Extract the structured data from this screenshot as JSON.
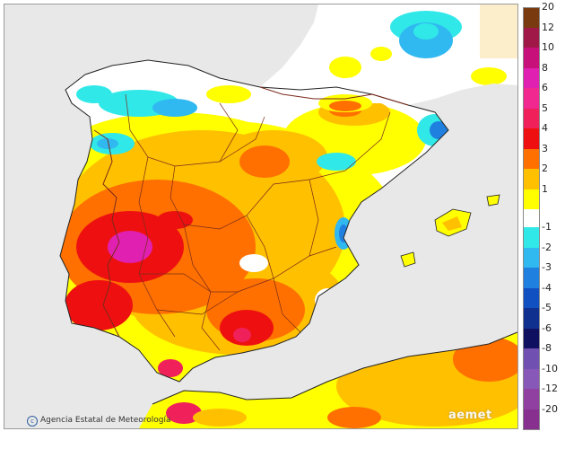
{
  "map": {
    "credit": "Agencia Estatal de Meteorología",
    "logo": "aemet"
  },
  "colors": {
    "sea": "#e8e8e8",
    "land_base": "#ffffff",
    "border": "#7a2a1a",
    "coast": "#222222"
  },
  "legend": {
    "positive": [
      {
        "label": "20",
        "color": "#7a3a10"
      },
      {
        "label": "12",
        "color": "#a01848"
      },
      {
        "label": "10",
        "color": "#c8107a"
      },
      {
        "label": "8",
        "color": "#e020b0"
      },
      {
        "label": "6",
        "color": "#f02890"
      },
      {
        "label": "5",
        "color": "#f0205a"
      },
      {
        "label": "4",
        "color": "#ee1010"
      },
      {
        "label": "3",
        "color": "#ff7000"
      },
      {
        "label": "2",
        "color": "#ffc000"
      },
      {
        "label": "1",
        "color": "#ffff00"
      }
    ],
    "neutral_color": "#ffffff",
    "negative": [
      {
        "label": "-1",
        "color": "#30e8e8"
      },
      {
        "label": "-2",
        "color": "#30b8f0"
      },
      {
        "label": "-3",
        "color": "#2080e0"
      },
      {
        "label": "-4",
        "color": "#1050c0"
      },
      {
        "label": "-5",
        "color": "#103090"
      },
      {
        "label": "-6",
        "color": "#101060"
      },
      {
        "label": "-8",
        "color": "#7050b0"
      },
      {
        "label": "-10",
        "color": "#8858b8"
      },
      {
        "label": "-12",
        "color": "#9040a0"
      },
      {
        "label": "-20",
        "color": "#883090"
      }
    ]
  }
}
